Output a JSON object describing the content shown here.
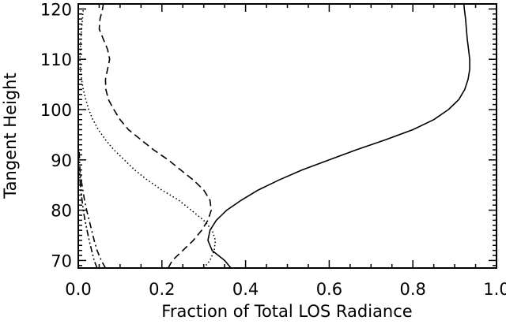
{
  "chart_data": {
    "type": "line",
    "title": "",
    "xlabel": "Fraction of Total LOS Radiance",
    "ylabel": "Tangent Height",
    "xlim": [
      0.0,
      1.0
    ],
    "ylim": [
      68.5,
      121
    ],
    "xticks": [
      0.0,
      0.2,
      0.4,
      0.6,
      0.8,
      1.0
    ],
    "xtick_labels": [
      "0.0",
      "0.2",
      "0.4",
      "0.6",
      "0.8",
      "1.0"
    ],
    "yticks": [
      70,
      80,
      90,
      100,
      110,
      120
    ],
    "ytick_labels": [
      "70",
      "80",
      "90",
      "100",
      "110",
      "120"
    ],
    "grid": false,
    "legend": "none",
    "series": [
      {
        "style": "solid",
        "points": [
          [
            0.365,
            68.5
          ],
          [
            0.35,
            70
          ],
          [
            0.32,
            72
          ],
          [
            0.31,
            74
          ],
          [
            0.315,
            76
          ],
          [
            0.33,
            78
          ],
          [
            0.355,
            80
          ],
          [
            0.39,
            82
          ],
          [
            0.43,
            84
          ],
          [
            0.48,
            86
          ],
          [
            0.535,
            88
          ],
          [
            0.6,
            90
          ],
          [
            0.665,
            92
          ],
          [
            0.735,
            94
          ],
          [
            0.8,
            96
          ],
          [
            0.85,
            98
          ],
          [
            0.885,
            100
          ],
          [
            0.91,
            102
          ],
          [
            0.924,
            104
          ],
          [
            0.932,
            106
          ],
          [
            0.936,
            108
          ],
          [
            0.936,
            110
          ],
          [
            0.933,
            112
          ],
          [
            0.93,
            114
          ],
          [
            0.928,
            116
          ],
          [
            0.926,
            118
          ],
          [
            0.923,
            120
          ],
          [
            0.922,
            121
          ]
        ]
      },
      {
        "style": "dashed",
        "points": [
          [
            0.215,
            68.5
          ],
          [
            0.225,
            70
          ],
          [
            0.25,
            72
          ],
          [
            0.275,
            74
          ],
          [
            0.295,
            76
          ],
          [
            0.31,
            78
          ],
          [
            0.318,
            80
          ],
          [
            0.315,
            82
          ],
          [
            0.3,
            84
          ],
          [
            0.275,
            86
          ],
          [
            0.245,
            88
          ],
          [
            0.215,
            90
          ],
          [
            0.18,
            92
          ],
          [
            0.15,
            94
          ],
          [
            0.12,
            96
          ],
          [
            0.1,
            98
          ],
          [
            0.085,
            100
          ],
          [
            0.072,
            102
          ],
          [
            0.066,
            104
          ],
          [
            0.065,
            106
          ],
          [
            0.07,
            108
          ],
          [
            0.075,
            110
          ],
          [
            0.07,
            112
          ],
          [
            0.06,
            114
          ],
          [
            0.05,
            116
          ],
          [
            0.052,
            118
          ],
          [
            0.058,
            120
          ],
          [
            0.06,
            121
          ]
        ]
      },
      {
        "style": "dotted",
        "points": [
          [
            0.3,
            68.5
          ],
          [
            0.315,
            70
          ],
          [
            0.325,
            72
          ],
          [
            0.328,
            74
          ],
          [
            0.32,
            76
          ],
          [
            0.3,
            78
          ],
          [
            0.27,
            80
          ],
          [
            0.24,
            82
          ],
          [
            0.2,
            84
          ],
          [
            0.165,
            86
          ],
          [
            0.135,
            88
          ],
          [
            0.11,
            90
          ],
          [
            0.085,
            92
          ],
          [
            0.065,
            94
          ],
          [
            0.048,
            96
          ],
          [
            0.035,
            98
          ],
          [
            0.025,
            100
          ],
          [
            0.018,
            102
          ],
          [
            0.012,
            104
          ],
          [
            0.008,
            106
          ],
          [
            0.005,
            108
          ],
          [
            0.004,
            110
          ],
          [
            0.005,
            112
          ],
          [
            0.006,
            114
          ],
          [
            0.008,
            116
          ],
          [
            0.01,
            118
          ],
          [
            0.012,
            120
          ]
        ]
      },
      {
        "style": "dashdot",
        "points": [
          [
            0.065,
            68.5
          ],
          [
            0.055,
            70
          ],
          [
            0.045,
            72
          ],
          [
            0.038,
            74
          ],
          [
            0.032,
            76
          ],
          [
            0.026,
            78
          ],
          [
            0.02,
            80
          ],
          [
            0.015,
            82
          ],
          [
            0.011,
            84
          ],
          [
            0.007,
            86
          ],
          [
            0.004,
            88
          ],
          [
            0.003,
            90
          ],
          [
            0.002,
            92
          ]
        ]
      },
      {
        "style": "dashdotdot",
        "points": [
          [
            0.045,
            68.5
          ],
          [
            0.038,
            70
          ],
          [
            0.032,
            72
          ],
          [
            0.026,
            74
          ],
          [
            0.021,
            76
          ],
          [
            0.016,
            78
          ],
          [
            0.012,
            80
          ],
          [
            0.009,
            82
          ],
          [
            0.006,
            84
          ],
          [
            0.004,
            86
          ],
          [
            0.003,
            88
          ]
        ]
      }
    ]
  }
}
